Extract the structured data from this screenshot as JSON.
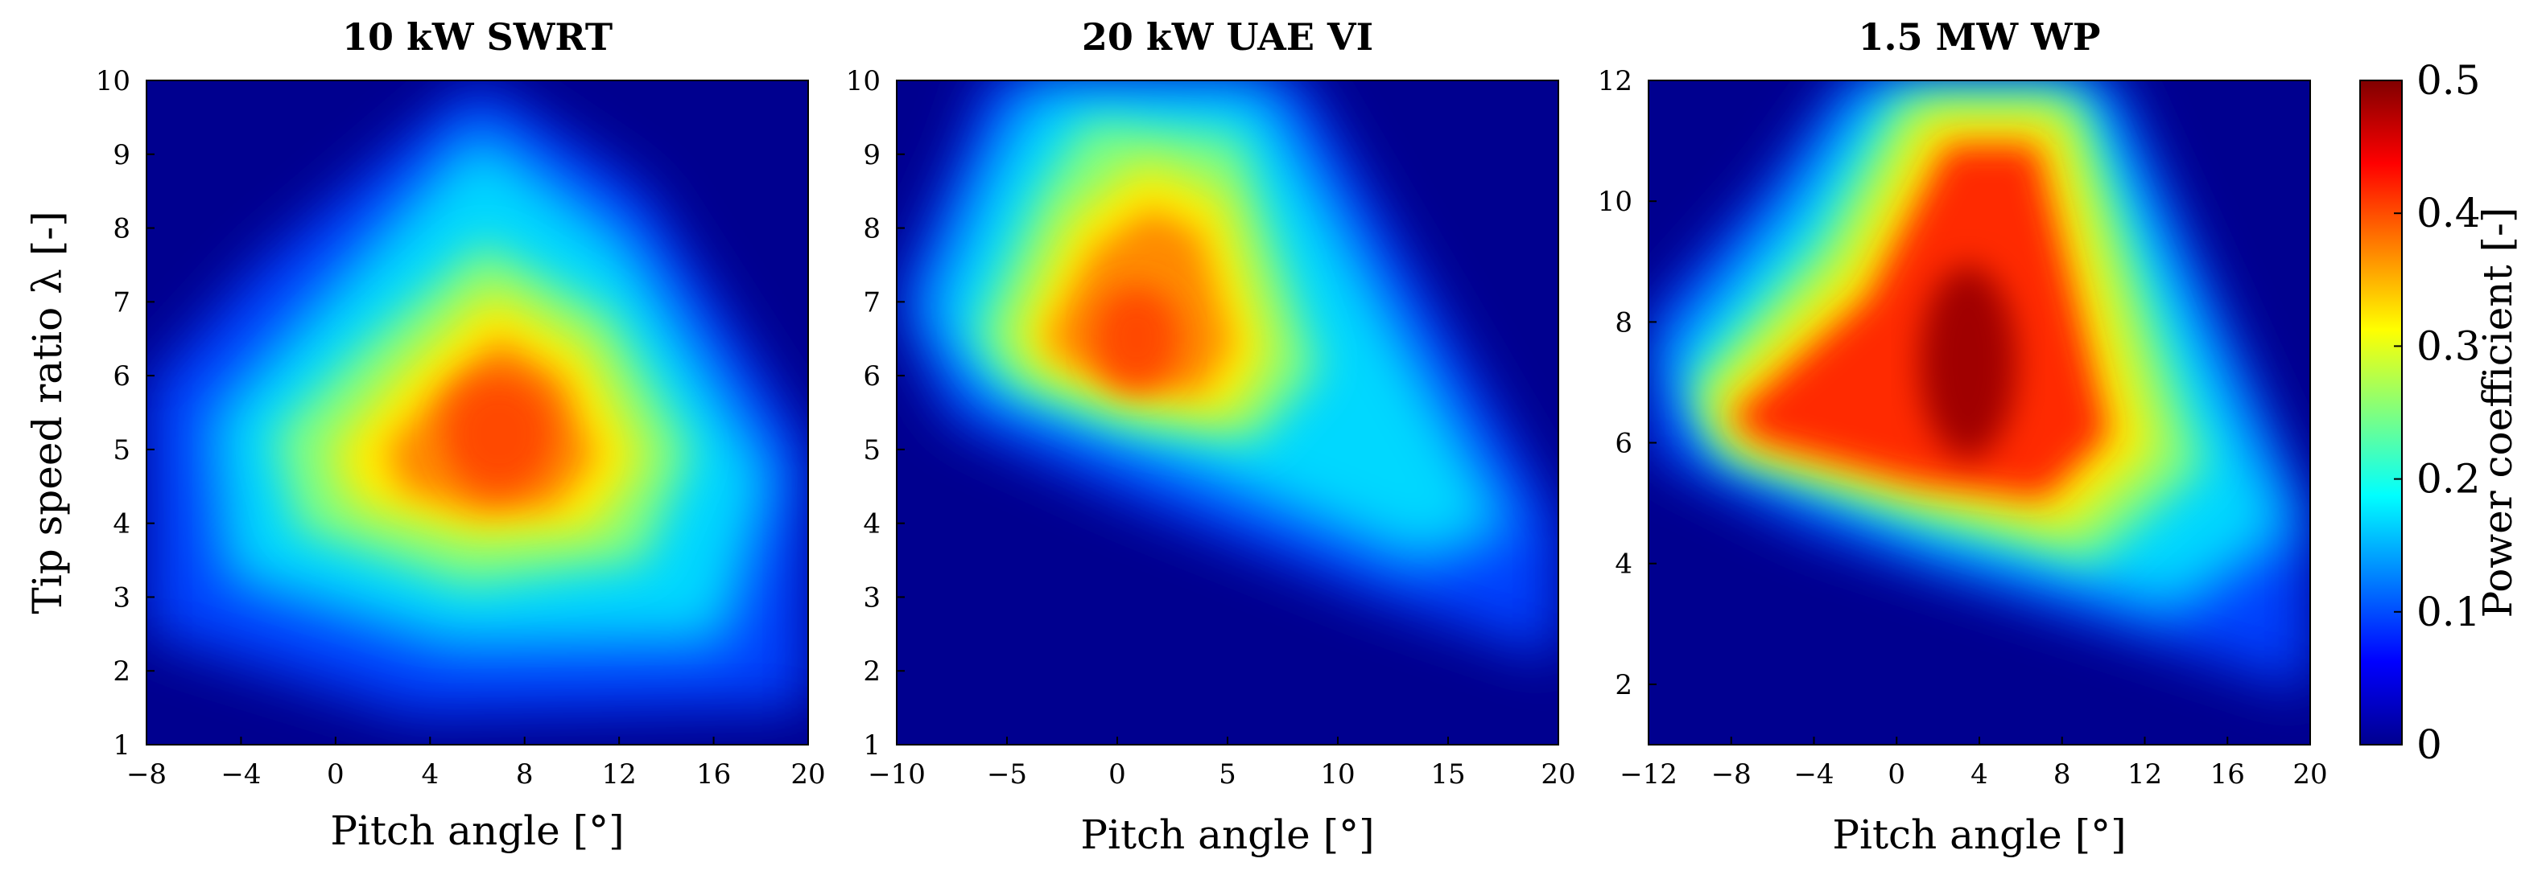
{
  "figure": {
    "colorbar": {
      "label": "Power coefficient [-]",
      "range": [
        0,
        0.5
      ],
      "ticks": [
        "0",
        "0.1",
        "0.2",
        "0.3",
        "0.4",
        "0.5"
      ],
      "colormap": "jet"
    }
  },
  "chart_data": [
    {
      "type": "heatmap",
      "title": "10 kW SWRT",
      "xlabel": "Pitch angle [°]",
      "ylabel": "Tip speed ratio λ [-]",
      "xlim": [
        -8,
        20
      ],
      "ylim": [
        1,
        10
      ],
      "xticks": [
        -8,
        -4,
        0,
        4,
        8,
        12,
        16,
        20
      ],
      "yticks": [
        1,
        2,
        3,
        4,
        5,
        6,
        7,
        8,
        9,
        10
      ],
      "peak": {
        "pitch": 7,
        "tsr": 5.5,
        "cp": 0.38
      },
      "region_points": [
        {
          "pitch": -8,
          "tsr": 6.0
        },
        {
          "pitch": -3,
          "tsr": 7.8
        },
        {
          "pitch": 7,
          "tsr": 10.0
        },
        {
          "pitch": 13,
          "tsr": 8.5
        },
        {
          "pitch": 20,
          "tsr": 5.0
        },
        {
          "pitch": 20,
          "tsr": 1.5
        },
        {
          "pitch": 4,
          "tsr": 1.8
        },
        {
          "pitch": -8,
          "tsr": 3.0
        }
      ]
    },
    {
      "type": "heatmap",
      "title": "20 kW UAE VI",
      "xlabel": "Pitch angle [°]",
      "ylabel": "",
      "xlim": [
        -10,
        20
      ],
      "ylim": [
        1,
        10
      ],
      "xticks": [
        -10,
        -5,
        0,
        5,
        10,
        15,
        20
      ],
      "yticks": [
        1,
        2,
        3,
        4,
        5,
        6,
        7,
        8,
        9,
        10
      ],
      "peak": {
        "pitch": 1,
        "tsr": 6.3,
        "cp": 0.37
      },
      "region_points": [
        {
          "pitch": -10,
          "tsr": 7.0
        },
        {
          "pitch": -6,
          "tsr": 9.5
        },
        {
          "pitch": -4,
          "tsr": 10.0
        },
        {
          "pitch": 8,
          "tsr": 10.0
        },
        {
          "pitch": 20,
          "tsr": 4.0
        },
        {
          "pitch": 20,
          "tsr": 2.2
        },
        {
          "pitch": 10,
          "tsr": 3.0
        },
        {
          "pitch": -2,
          "tsr": 4.8
        }
      ]
    },
    {
      "type": "heatmap",
      "title": "1.5 MW WP",
      "xlabel": "Pitch angle [°]",
      "ylabel": "",
      "xlim": [
        -12,
        20
      ],
      "ylim": [
        1,
        12
      ],
      "xticks": [
        -12,
        -8,
        -4,
        0,
        4,
        8,
        12,
        16,
        20
      ],
      "yticks": [
        2,
        4,
        6,
        8,
        10,
        12
      ],
      "peak": {
        "pitch": 2,
        "tsr": 7.5,
        "cp": 0.49
      },
      "region_points": [
        {
          "pitch": -12,
          "tsr": 8.0
        },
        {
          "pitch": -5,
          "tsr": 11.0
        },
        {
          "pitch": -1,
          "tsr": 12.0
        },
        {
          "pitch": 10,
          "tsr": 12.0
        },
        {
          "pitch": 20,
          "tsr": 4.0
        },
        {
          "pitch": 20,
          "tsr": 2.0
        },
        {
          "pitch": 8,
          "tsr": 3.0
        },
        {
          "pitch": -12,
          "tsr": 6.5
        }
      ]
    }
  ]
}
